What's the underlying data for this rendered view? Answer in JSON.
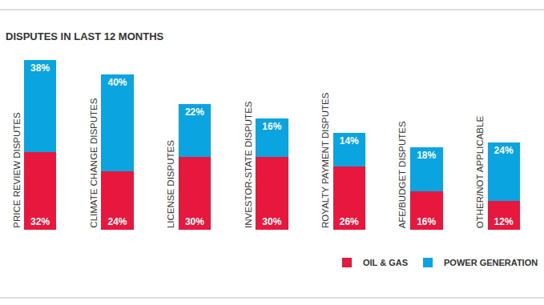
{
  "chart_data": {
    "type": "bar",
    "title": "DISPUTES IN LAST 12 MONTHS",
    "categories": [
      "PRICE REVIEW DISPUTES",
      "CLIMATE CHANGE DISPUTES",
      "LICENSE DISPUTES",
      "INVESTOR-STATE DISPUTES",
      "ROYALTY PAYMENT DISPUTES",
      "AFE/BUDGET DISPUTES",
      "OTHER/NOT APPLICABLE"
    ],
    "series": [
      {
        "name": "OIL & GAS",
        "color": "#e8173d",
        "values": [
          32,
          24,
          30,
          30,
          26,
          16,
          12
        ],
        "value_labels": [
          "32%",
          "24%",
          "30%",
          "30%",
          "26%",
          "16%",
          "12%"
        ]
      },
      {
        "name": "POWER GENERATION",
        "color": "#0aa5e0",
        "values": [
          38,
          40,
          22,
          16,
          14,
          18,
          24
        ],
        "value_labels": [
          "38%",
          "40%",
          "22%",
          "16%",
          "14%",
          "18%",
          "24%"
        ]
      }
    ],
    "ylim": [
      0,
      70
    ],
    "stacked": true,
    "data_labels": true,
    "grid": false,
    "legend": "lower right",
    "tick_labels": "x"
  }
}
